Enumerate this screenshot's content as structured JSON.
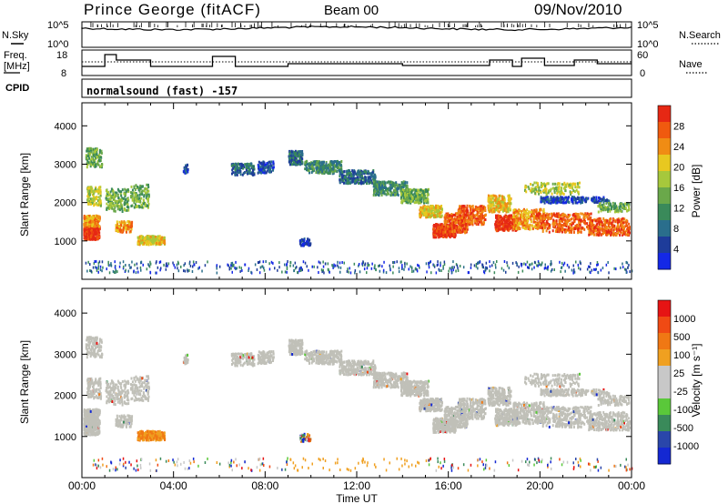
{
  "header": {
    "station": "Prince George (fitACF)",
    "beam": "Beam 00",
    "date": "09/Nov/2010"
  },
  "top_panel": {
    "left_label": "N.Sky",
    "right_label": "N.Search",
    "left_ticks": [
      "10^5",
      "10^0"
    ],
    "right_ticks": [
      "10^5",
      "10^0"
    ]
  },
  "freq_panel": {
    "left_label_line1": "Freq.",
    "left_label_line2": "[MHz]",
    "left_ticks": [
      "18",
      "8"
    ],
    "right_ticks": [
      "60",
      "0"
    ],
    "right_label": "Nave",
    "cpid_label": "CPID",
    "program": "normalsound (fast) -157"
  },
  "colors": {
    "power": [
      "#1428e6",
      "#1e3c9a",
      "#2a6e8c",
      "#3a8a5a",
      "#6aa84a",
      "#a6c83c",
      "#e8c820",
      "#f08c14",
      "#f05a0f",
      "#e62814"
    ],
    "velocity": [
      "#1428d2",
      "#2a46aa",
      "#3a8a5a",
      "#5ac83a",
      "#c8c8c8",
      "#c8c8c8",
      "#f0a020",
      "#f07814",
      "#f04a14",
      "#e61414"
    ],
    "ground_scatter": "#c0c0b8"
  },
  "chart_data": [
    {
      "type": "heatmap",
      "name": "power",
      "xlabel": "",
      "ylabel": "Slant Range [km]",
      "xlim": [
        0,
        24
      ],
      "ylim": [
        0,
        4600
      ],
      "yticks": [
        "1000",
        "2000",
        "3000",
        "4000"
      ],
      "colorbar": {
        "label": "Power [dB]",
        "ticks": [
          "28",
          "24",
          "20",
          "16",
          "12",
          "8",
          "4"
        ]
      }
    },
    {
      "type": "heatmap",
      "name": "velocity",
      "xlabel": "Time UT",
      "ylabel": "Slant Range [km]",
      "xlim": [
        0,
        24
      ],
      "ylim": [
        0,
        4600
      ],
      "xticks": [
        "00:00",
        "04:00",
        "08:00",
        "12:00",
        "16:00",
        "20:00",
        "00:00"
      ],
      "yticks": [
        "1000",
        "2000",
        "3000",
        "4000"
      ],
      "colorbar": {
        "label": "Velocity [m s⁻¹]",
        "ticks": [
          "1000",
          "500",
          "100",
          "25",
          "-25",
          "-100",
          "-500",
          "-1000"
        ]
      }
    }
  ]
}
